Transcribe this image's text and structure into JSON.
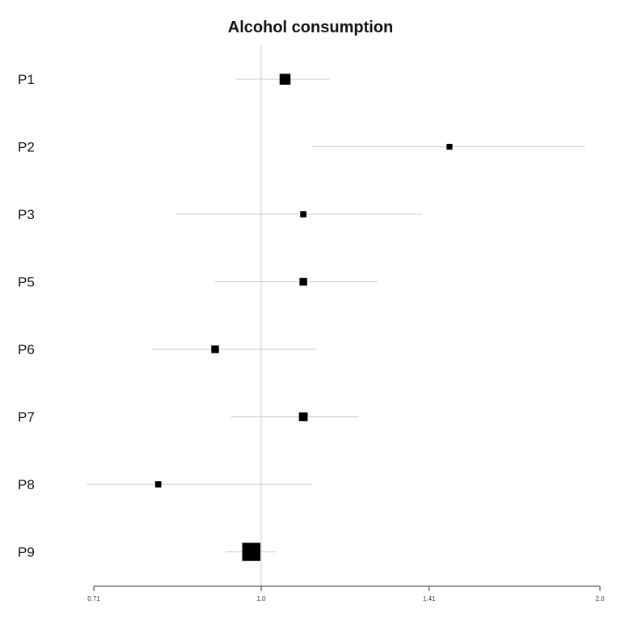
{
  "chart_data": {
    "type": "scatter",
    "title": "Alcohol consumption",
    "xlabel": "",
    "ylabel": "",
    "x_scale": "log",
    "xlim": [
      0.71,
      2.0
    ],
    "x_ticks": [
      "0.71",
      "1.0",
      "1.41",
      "2.0"
    ],
    "x_tick_values": [
      0.71,
      1.0,
      1.41,
      2.0
    ],
    "reference_line": 1.0,
    "grid": false,
    "rows": [
      {
        "label": "P1",
        "estimate": 1.05,
        "lower": 0.95,
        "upper": 1.15,
        "weight": 1.5
      },
      {
        "label": "P2",
        "estimate": 1.47,
        "lower": 1.11,
        "upper": 1.94,
        "weight": 0.8
      },
      {
        "label": "P3",
        "estimate": 1.09,
        "lower": 0.84,
        "upper": 1.39,
        "weight": 0.85
      },
      {
        "label": "P5",
        "estimate": 1.09,
        "lower": 0.91,
        "upper": 1.27,
        "weight": 1.05
      },
      {
        "label": "P6",
        "estimate": 0.91,
        "lower": 0.8,
        "upper": 1.12,
        "weight": 1.05
      },
      {
        "label": "P7",
        "estimate": 1.09,
        "lower": 0.94,
        "upper": 1.22,
        "weight": 1.2
      },
      {
        "label": "P8",
        "estimate": 0.81,
        "lower": 0.7,
        "upper": 1.11,
        "weight": 0.85
      },
      {
        "label": "P9",
        "estimate": 0.98,
        "lower": 0.93,
        "upper": 1.03,
        "weight": 2.5
      }
    ]
  },
  "colors": {
    "point": "#000000",
    "ci_line": "#c8c8c8",
    "reference_line": "#d0d0d0",
    "axis": "#333333"
  }
}
